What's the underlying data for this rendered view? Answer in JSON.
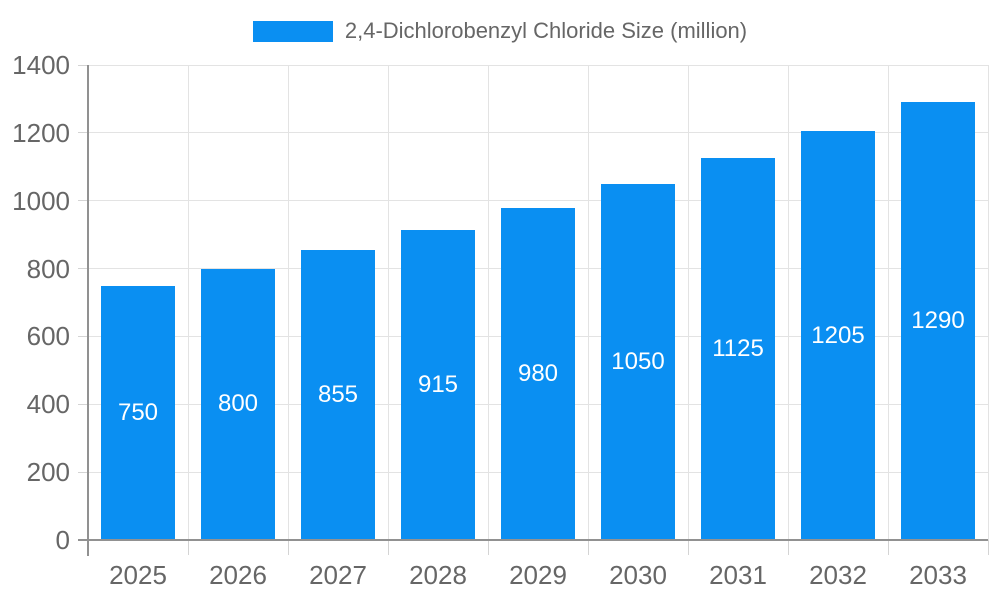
{
  "chart_data": {
    "type": "bar",
    "title": "2,4-Dichlorobenzyl Chloride Size (million)",
    "categories": [
      "2025",
      "2026",
      "2027",
      "2028",
      "2029",
      "2030",
      "2031",
      "2032",
      "2033"
    ],
    "values": [
      750,
      800,
      855,
      915,
      980,
      1050,
      1125,
      1205,
      1290
    ],
    "xlabel": "",
    "ylabel": "",
    "ylim": [
      0,
      1400
    ],
    "ytick_step": 200,
    "grid": true,
    "legend_position": "top-center",
    "bar_color": "#0a8ff2",
    "value_label_color": "#ffffff",
    "axis_text_color": "#666666",
    "grid_color": "#e3e3e3",
    "tick_color": "#d4d4d4",
    "axis_line_color": "#919191",
    "background_color": "#ffffff"
  }
}
